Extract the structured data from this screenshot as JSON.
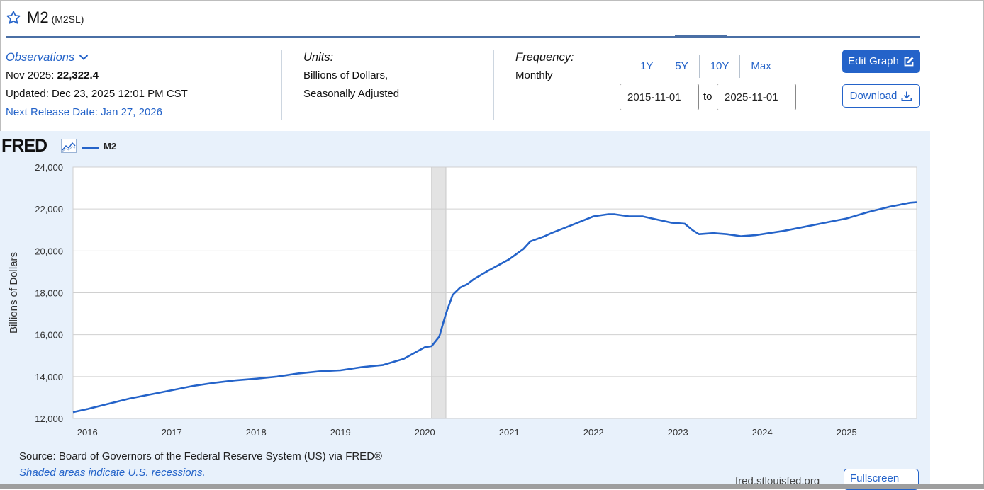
{
  "header": {
    "title": "M2",
    "series_id": "(M2SL)"
  },
  "observations": {
    "link_label": "Observations",
    "period_label": "Nov 2025:",
    "value": "22,322.4",
    "updated": "Updated: Dec 23, 2025 12:01 PM CST",
    "next_release": "Next Release Date: Jan 27, 2026"
  },
  "units": {
    "label": "Units:",
    "line1": "Billions of Dollars,",
    "line2": "Seasonally Adjusted"
  },
  "frequency": {
    "label": "Frequency:",
    "value": "Monthly"
  },
  "range": {
    "buttons": [
      "1Y",
      "5Y",
      "10Y",
      "Max"
    ],
    "start": "2015-11-01",
    "to_label": "to",
    "end": "2025-11-01"
  },
  "actions": {
    "edit_graph": "Edit Graph",
    "download": "Download",
    "fullscreen": "Fullscreen"
  },
  "chart": {
    "logo": "FRED",
    "legend": "M2",
    "source": "Source: Board of Governors of the Federal Reserve System (US) via FRED®",
    "shaded_note": "Shaded areas indicate U.S. recessions.",
    "url": "fred.stlouisfed.org",
    "accent_color": "#2463c9",
    "recession_color": "#e3e3e3"
  },
  "chart_data": {
    "type": "line",
    "title": "",
    "xlabel": "",
    "ylabel": "Billions of Dollars",
    "ylim": [
      12000,
      24000
    ],
    "xlim": [
      2015.83,
      2025.83
    ],
    "y_ticks": [
      12000,
      14000,
      16000,
      18000,
      20000,
      22000,
      24000
    ],
    "y_tick_labels": [
      "12,000",
      "14,000",
      "16,000",
      "18,000",
      "20,000",
      "22,000",
      "24,000"
    ],
    "x_ticks": [
      2016,
      2017,
      2018,
      2019,
      2020,
      2021,
      2022,
      2023,
      2024,
      2025
    ],
    "x_tick_labels": [
      "2016",
      "2017",
      "2018",
      "2019",
      "2020",
      "2021",
      "2022",
      "2023",
      "2024",
      "2025"
    ],
    "recession": [
      2020.08,
      2020.25
    ],
    "grid": true,
    "series": [
      {
        "name": "M2",
        "x": [
          2015.83,
          2016.0,
          2016.25,
          2016.5,
          2016.75,
          2017.0,
          2017.25,
          2017.5,
          2017.75,
          2018.0,
          2018.25,
          2018.5,
          2018.75,
          2019.0,
          2019.25,
          2019.5,
          2019.75,
          2020.0,
          2020.08,
          2020.17,
          2020.25,
          2020.33,
          2020.42,
          2020.5,
          2020.58,
          2020.75,
          2021.0,
          2021.17,
          2021.25,
          2021.42,
          2021.5,
          2021.75,
          2022.0,
          2022.17,
          2022.25,
          2022.42,
          2022.58,
          2022.75,
          2022.92,
          2023.08,
          2023.17,
          2023.25,
          2023.42,
          2023.58,
          2023.75,
          2023.92,
          2024.08,
          2024.25,
          2024.5,
          2024.75,
          2025.0,
          2025.25,
          2025.5,
          2025.75,
          2025.83
        ],
        "values": [
          12300,
          12450,
          12700,
          12950,
          13150,
          13350,
          13550,
          13700,
          13820,
          13900,
          14000,
          14150,
          14250,
          14300,
          14450,
          14550,
          14850,
          15400,
          15450,
          15900,
          17000,
          17900,
          18250,
          18400,
          18650,
          19050,
          19600,
          20100,
          20450,
          20700,
          20850,
          21250,
          21650,
          21750,
          21750,
          21650,
          21650,
          21500,
          21350,
          21300,
          21000,
          20800,
          20850,
          20800,
          20700,
          20750,
          20850,
          20950,
          21150,
          21350,
          21550,
          21850,
          22100,
          22300,
          22322
        ]
      }
    ]
  }
}
